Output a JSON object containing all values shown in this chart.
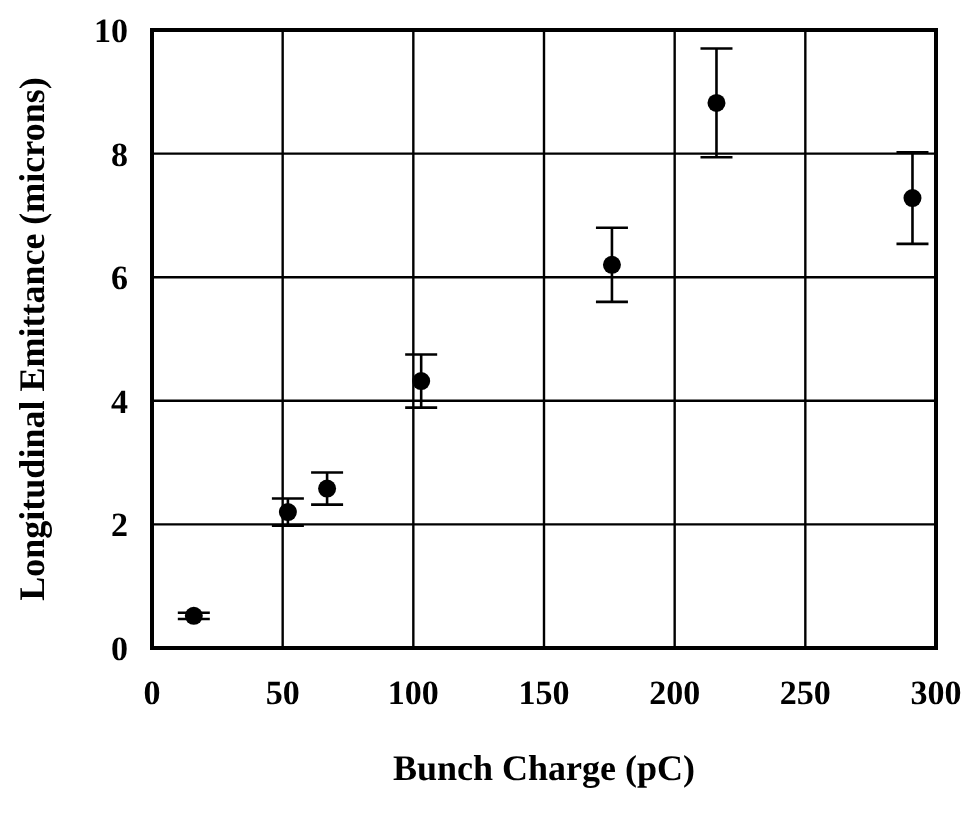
{
  "chart_data": {
    "type": "scatter",
    "xlabel": "Bunch Charge (pC)",
    "ylabel": "Longitudinal Emittance (microns)",
    "x": [
      16,
      52,
      67,
      103,
      176,
      216,
      291
    ],
    "values": [
      0.52,
      2.2,
      2.58,
      4.32,
      6.2,
      8.82,
      7.28
    ],
    "errors": [
      0.05,
      0.22,
      0.26,
      0.43,
      0.6,
      0.88,
      0.74
    ],
    "color": "#000000",
    "marker": "circle",
    "xlim": [
      0,
      300
    ],
    "xticks": [
      0,
      50,
      100,
      150,
      200,
      250,
      300
    ],
    "ylim": [
      0,
      10
    ],
    "yticks": [
      0,
      2,
      4,
      6,
      8,
      10
    ],
    "grid": true
  }
}
